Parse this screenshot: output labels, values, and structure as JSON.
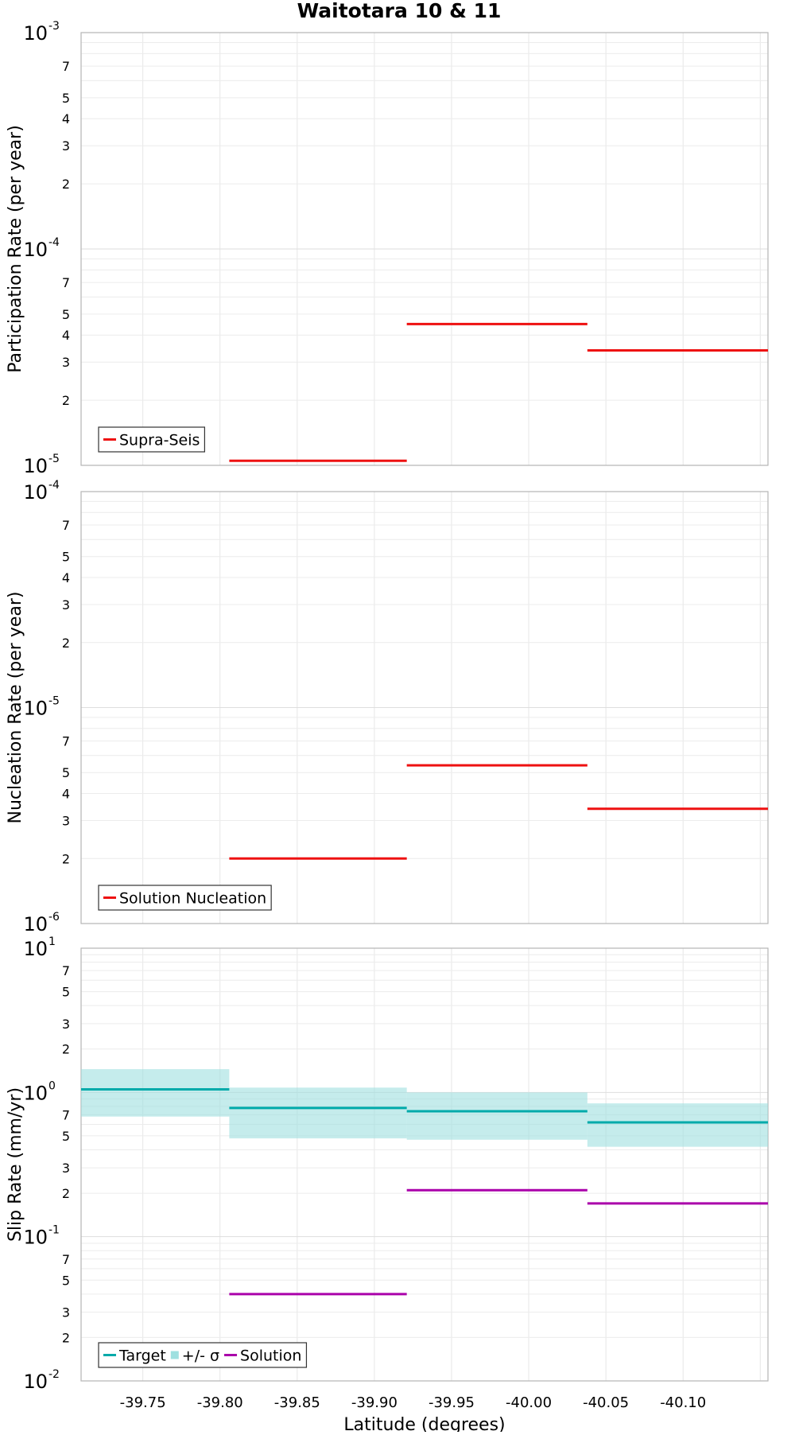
{
  "chart_data": [
    {
      "type": "line",
      "subtype": "step-segments",
      "title": "Waitotara 10 & 11",
      "xlabel": "",
      "ylabel": "Participation Rate (per year)",
      "yscale": "log",
      "ylim": [
        1e-05,
        0.001
      ],
      "xlim": [
        -39.71,
        -40.155
      ],
      "x_reversed": true,
      "grid": true,
      "legend_position": "bottom-left",
      "series": [
        {
          "name": "Supra-Seis",
          "color": "#ee1111",
          "segments": [
            {
              "x0": -39.806,
              "x1": -39.921,
              "y": 1.05e-05
            },
            {
              "x0": -39.921,
              "x1": -40.038,
              "y": 4.5e-05
            },
            {
              "x0": -40.038,
              "x1": -40.155,
              "y": 3.4e-05
            }
          ]
        }
      ]
    },
    {
      "type": "line",
      "subtype": "step-segments",
      "title": "",
      "xlabel": "",
      "ylabel": "Nucleation Rate (per year)",
      "yscale": "log",
      "ylim": [
        1e-06,
        0.0001
      ],
      "xlim": [
        -39.71,
        -40.155
      ],
      "x_reversed": true,
      "grid": true,
      "legend_position": "bottom-left",
      "series": [
        {
          "name": "Solution Nucleation",
          "color": "#ee1111",
          "segments": [
            {
              "x0": -39.806,
              "x1": -39.921,
              "y": 2e-06
            },
            {
              "x0": -39.921,
              "x1": -40.038,
              "y": 5.4e-06
            },
            {
              "x0": -40.038,
              "x1": -40.155,
              "y": 3.4e-06
            }
          ]
        }
      ]
    },
    {
      "type": "line",
      "subtype": "step-segments",
      "title": "",
      "xlabel": "Latitude (degrees)",
      "ylabel": "Slip Rate (mm/yr)",
      "yscale": "log",
      "ylim": [
        0.01,
        10
      ],
      "xlim": [
        -39.71,
        -40.155
      ],
      "x_reversed": true,
      "x_ticks": [
        "-39.75",
        "-39.80",
        "-39.85",
        "-39.90",
        "-39.95",
        "-40.00",
        "-40.05",
        "-40.10"
      ],
      "grid": true,
      "legend_position": "bottom-left",
      "series": [
        {
          "name": "Target",
          "color": "#00aaaa",
          "segments": [
            {
              "x0": -39.71,
              "x1": -39.806,
              "y": 1.05
            },
            {
              "x0": -39.806,
              "x1": -39.921,
              "y": 0.78
            },
            {
              "x0": -39.921,
              "x1": -40.038,
              "y": 0.74
            },
            {
              "x0": -40.038,
              "x1": -40.155,
              "y": 0.62
            }
          ]
        },
        {
          "name": "+/- σ",
          "color": "#9ee0e0",
          "band": true,
          "segments": [
            {
              "x0": -39.71,
              "x1": -39.806,
              "lo": 0.68,
              "hi": 1.45
            },
            {
              "x0": -39.806,
              "x1": -39.921,
              "lo": 0.48,
              "hi": 1.08
            },
            {
              "x0": -39.921,
              "x1": -40.038,
              "lo": 0.47,
              "hi": 1.0
            },
            {
              "x0": -40.038,
              "x1": -40.155,
              "lo": 0.42,
              "hi": 0.84
            }
          ]
        },
        {
          "name": "Solution",
          "color": "#aa00aa",
          "segments": [
            {
              "x0": -39.806,
              "x1": -39.921,
              "y": 0.04
            },
            {
              "x0": -39.921,
              "x1": -40.038,
              "y": 0.21
            },
            {
              "x0": -40.038,
              "x1": -40.155,
              "y": 0.17
            }
          ]
        }
      ]
    }
  ]
}
